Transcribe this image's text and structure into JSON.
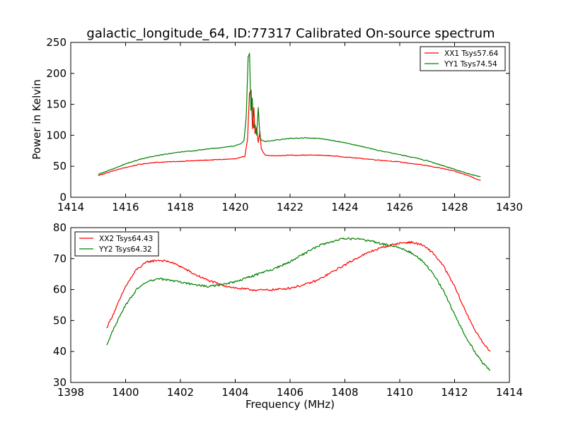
{
  "colors": {
    "red": "#ff0000",
    "green": "#008000"
  },
  "chart_data": [
    {
      "type": "line",
      "title": "galactic_longitude_64, ID:77317 Calibrated On-source spectrum",
      "xlabel": "",
      "ylabel": "Power in Kelvin",
      "xlim": [
        1414,
        1430
      ],
      "ylim": [
        0,
        250
      ],
      "xticks": [
        "1414",
        "1416",
        "1418",
        "1420",
        "1422",
        "1424",
        "1426",
        "1428",
        "1430"
      ],
      "yticks": [
        "0",
        "50",
        "100",
        "150",
        "200",
        "250"
      ],
      "legend_position": "top-right",
      "grid": false,
      "series": [
        {
          "name": "XX1 Tsys57.64",
          "color": "#ff0000",
          "x": [
            1415.0,
            1415.5,
            1416.0,
            1416.5,
            1417.0,
            1417.5,
            1418.0,
            1418.5,
            1419.0,
            1419.5,
            1420.0,
            1420.2,
            1420.35,
            1420.45,
            1420.52,
            1420.58,
            1420.63,
            1420.68,
            1420.72,
            1420.78,
            1420.84,
            1420.9,
            1420.95,
            1421.02,
            1421.1,
            1421.3,
            1421.6,
            1422.0,
            1422.5,
            1423.0,
            1423.5,
            1424.0,
            1424.5,
            1425.0,
            1425.5,
            1426.0,
            1426.5,
            1427.0,
            1427.5,
            1428.0,
            1428.5,
            1428.95
          ],
          "values": [
            35,
            42,
            48,
            53,
            56,
            57,
            58,
            59,
            60,
            61,
            62,
            64,
            66,
            95,
            168,
            173,
            110,
            145,
            102,
            112,
            88,
            106,
            78,
            72,
            68,
            67,
            67,
            68,
            68,
            68,
            67,
            65,
            63,
            61,
            59,
            57,
            54,
            51,
            47,
            42,
            35,
            27
          ]
        },
        {
          "name": "YY1 Tsys74.54",
          "color": "#008000",
          "x": [
            1415.0,
            1415.5,
            1416.0,
            1416.5,
            1417.0,
            1417.5,
            1418.0,
            1418.5,
            1419.0,
            1419.5,
            1420.0,
            1420.2,
            1420.32,
            1420.4,
            1420.47,
            1420.52,
            1420.57,
            1420.62,
            1420.67,
            1420.72,
            1420.78,
            1420.84,
            1420.9,
            1420.95,
            1421.02,
            1421.1,
            1421.3,
            1421.6,
            1422.0,
            1422.5,
            1423.0,
            1423.5,
            1424.0,
            1424.5,
            1425.0,
            1425.5,
            1426.0,
            1426.5,
            1427.0,
            1427.5,
            1428.0,
            1428.5,
            1428.95
          ],
          "values": [
            37,
            45,
            54,
            61,
            66,
            70,
            73,
            75,
            78,
            80,
            83,
            86,
            92,
            130,
            226,
            232,
            140,
            160,
            112,
            118,
            100,
            145,
            98,
            92,
            91,
            90,
            91,
            93,
            95,
            96,
            95,
            92,
            88,
            83,
            78,
            73,
            69,
            64,
            59,
            52,
            45,
            38,
            33
          ]
        }
      ]
    },
    {
      "type": "line",
      "title": "",
      "xlabel": "Frequency (MHz)",
      "ylabel": "",
      "xlim": [
        1398,
        1414
      ],
      "ylim": [
        30,
        80
      ],
      "xticks": [
        "1398",
        "1400",
        "1402",
        "1404",
        "1406",
        "1408",
        "1410",
        "1412",
        "1414"
      ],
      "yticks": [
        "30",
        "40",
        "50",
        "60",
        "70",
        "80"
      ],
      "legend_position": "top-left",
      "grid": false,
      "series": [
        {
          "name": "XX2 Tsys64.43",
          "color": "#ff0000",
          "x": [
            1399.3,
            1399.6,
            1400.0,
            1400.4,
            1400.8,
            1401.2,
            1401.6,
            1402.0,
            1402.5,
            1403.0,
            1403.5,
            1404.0,
            1404.5,
            1405.0,
            1405.5,
            1406.0,
            1406.5,
            1407.0,
            1407.5,
            1408.0,
            1408.5,
            1409.0,
            1409.5,
            1410.0,
            1410.4,
            1410.8,
            1411.2,
            1411.6,
            1412.0,
            1412.4,
            1412.8,
            1413.1,
            1413.3
          ],
          "values": [
            47.5,
            53,
            61,
            66.5,
            69,
            69.5,
            69,
            67.5,
            65,
            63,
            61.5,
            60.5,
            60,
            59.8,
            60,
            60.5,
            61.5,
            63,
            65.5,
            68,
            70.5,
            72.5,
            74,
            75,
            75.3,
            74.5,
            72,
            67.5,
            61,
            53,
            46,
            42,
            40
          ]
        },
        {
          "name": "YY2 Tsys64.32",
          "color": "#008000",
          "x": [
            1399.3,
            1399.6,
            1400.0,
            1400.4,
            1400.8,
            1401.2,
            1401.6,
            1402.0,
            1402.5,
            1403.0,
            1403.5,
            1404.0,
            1404.5,
            1405.0,
            1405.5,
            1406.0,
            1406.5,
            1407.0,
            1407.5,
            1408.0,
            1408.5,
            1409.0,
            1409.5,
            1410.0,
            1410.4,
            1410.8,
            1411.2,
            1411.6,
            1412.0,
            1412.4,
            1412.8,
            1413.1,
            1413.3
          ],
          "values": [
            42,
            48,
            55,
            60,
            62.5,
            63.5,
            63,
            62.5,
            61.5,
            61,
            61.5,
            62.5,
            64,
            65.5,
            67,
            69,
            71.5,
            74,
            75.5,
            76.5,
            76.3,
            75.5,
            74.5,
            73.5,
            72,
            69.5,
            65.5,
            59.5,
            52,
            45,
            39,
            35.5,
            34
          ]
        }
      ]
    }
  ]
}
